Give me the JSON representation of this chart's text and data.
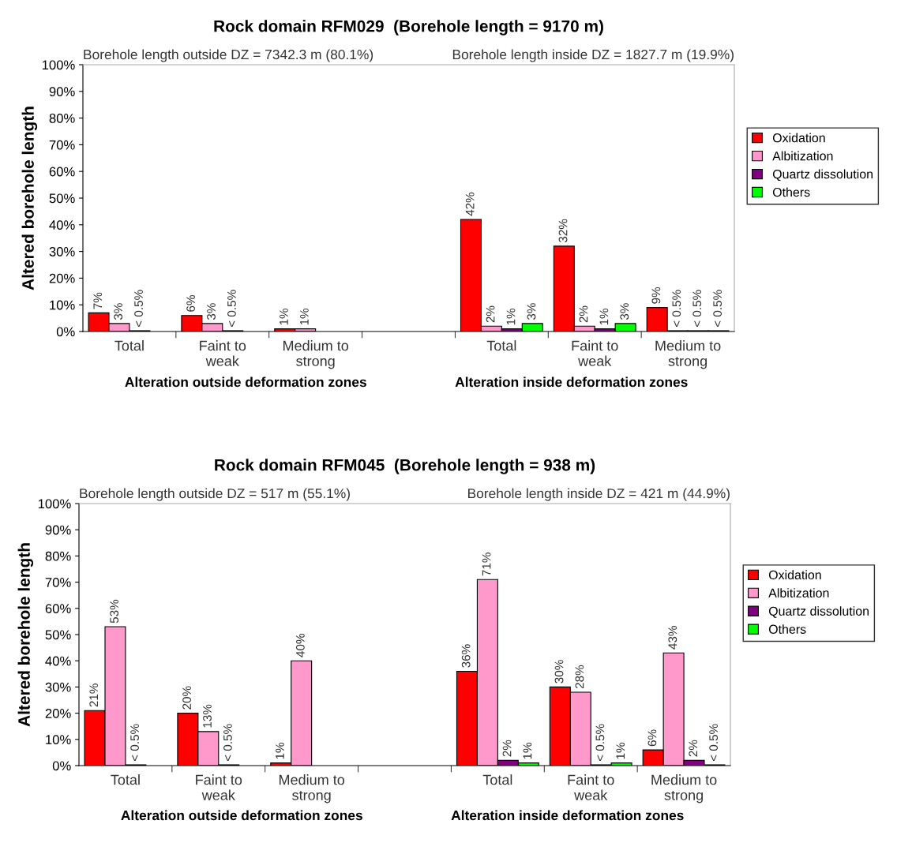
{
  "chart_data": [
    {
      "type": "bar",
      "title": "Rock domain RFM029  (Borehole length = 9170 m)",
      "ylabel": "Altered borehole length",
      "categories": [
        "Total",
        "Faint to\nweak",
        "Medium to\nstrong",
        null,
        "Total",
        "Faint to\nweak",
        "Medium to\nstrong"
      ],
      "series": [
        {
          "name": "Oxidation",
          "color": "#ff0000",
          "values": [
            7,
            6,
            1,
            null,
            42,
            32,
            9
          ],
          "value_labels": [
            "7%",
            "6%",
            "1%",
            null,
            "42%",
            "32%",
            "9%"
          ]
        },
        {
          "name": "Albitization",
          "color": "#ff99cc",
          "values": [
            3,
            3,
            1,
            null,
            2,
            2,
            0.3
          ],
          "value_labels": [
            "3%",
            "3%",
            "1%",
            null,
            "2%",
            "2%",
            "< 0.5%"
          ]
        },
        {
          "name": "Quartz dissolution",
          "color": "#800080",
          "values": [
            0.3,
            0.3,
            null,
            null,
            1,
            1,
            0.3
          ],
          "value_labels": [
            "< 0.5%",
            "< 0.5%",
            null,
            null,
            "1%",
            "1%",
            "< 0.5%"
          ]
        },
        {
          "name": "Others",
          "color": "#00ff00",
          "values": [
            null,
            null,
            null,
            null,
            3,
            3,
            0.3
          ],
          "value_labels": [
            null,
            null,
            null,
            null,
            "3%",
            "3%",
            "< 0.5%"
          ]
        }
      ],
      "ylim": [
        0,
        100
      ],
      "yticks": [
        {
          "value": 0,
          "label": "0%"
        },
        {
          "value": 10,
          "label": "10%"
        },
        {
          "value": 20,
          "label": "20%"
        },
        {
          "value": 30,
          "label": "30%"
        },
        {
          "value": 40,
          "label": "40%"
        },
        {
          "value": 50,
          "label": "50%"
        },
        {
          "value": 60,
          "label": "60%"
        },
        {
          "value": 70,
          "label": "70%"
        },
        {
          "value": 80,
          "label": "80%"
        },
        {
          "value": 90,
          "label": "90%"
        },
        {
          "value": 100,
          "label": "100%"
        }
      ],
      "grid": false,
      "legend": "right",
      "annotations": [
        "Borehole length outside DZ = 7342.3 m (80.1%)",
        "Borehole length inside DZ = 1827.7 m (19.9%)",
        "Alteration outside deformation zones",
        "Alteration inside deformation zones"
      ]
    },
    {
      "type": "bar",
      "title": "Rock domain RFM045  (Borehole length = 938 m)",
      "ylabel": "Altered borehole length",
      "categories": [
        "Total",
        "Faint to\nweak",
        "Medium to\nstrong",
        null,
        "Total",
        "Faint to\nweak",
        "Medium to\nstrong"
      ],
      "series": [
        {
          "name": "Oxidation",
          "color": "#ff0000",
          "values": [
            21,
            20,
            1,
            null,
            36,
            30,
            6
          ],
          "value_labels": [
            "21%",
            "20%",
            "1%",
            null,
            "36%",
            "30%",
            "6%"
          ]
        },
        {
          "name": "Albitization",
          "color": "#ff99cc",
          "values": [
            53,
            13,
            40,
            null,
            71,
            28,
            43
          ],
          "value_labels": [
            "53%",
            "13%",
            "40%",
            null,
            "71%",
            "28%",
            "43%"
          ]
        },
        {
          "name": "Quartz dissolution",
          "color": "#800080",
          "values": [
            0.3,
            0.3,
            null,
            null,
            2,
            0.3,
            2
          ],
          "value_labels": [
            "< 0.5%",
            "< 0.5%",
            null,
            null,
            "2%",
            "< 0.5%",
            "2%"
          ]
        },
        {
          "name": "Others",
          "color": "#00ff00",
          "values": [
            null,
            null,
            null,
            null,
            1,
            1,
            0.3
          ],
          "value_labels": [
            null,
            null,
            null,
            null,
            "1%",
            "1%",
            "< 0.5%"
          ]
        }
      ],
      "ylim": [
        0,
        100
      ],
      "yticks": [
        {
          "value": 0,
          "label": "0%"
        },
        {
          "value": 10,
          "label": "10%"
        },
        {
          "value": 20,
          "label": "20%"
        },
        {
          "value": 30,
          "label": "30%"
        },
        {
          "value": 40,
          "label": "40%"
        },
        {
          "value": 50,
          "label": "50%"
        },
        {
          "value": 60,
          "label": "60%"
        },
        {
          "value": 70,
          "label": "70%"
        },
        {
          "value": 80,
          "label": "80%"
        },
        {
          "value": 90,
          "label": "90%"
        },
        {
          "value": 100,
          "label": "100%"
        }
      ],
      "grid": false,
      "legend": "right",
      "annotations": [
        "Borehole length outside DZ = 517 m (55.1%)",
        "Borehole length inside DZ = 421 m (44.9%)",
        "Alteration outside deformation zones",
        "Alteration inside deformation zones"
      ]
    }
  ]
}
